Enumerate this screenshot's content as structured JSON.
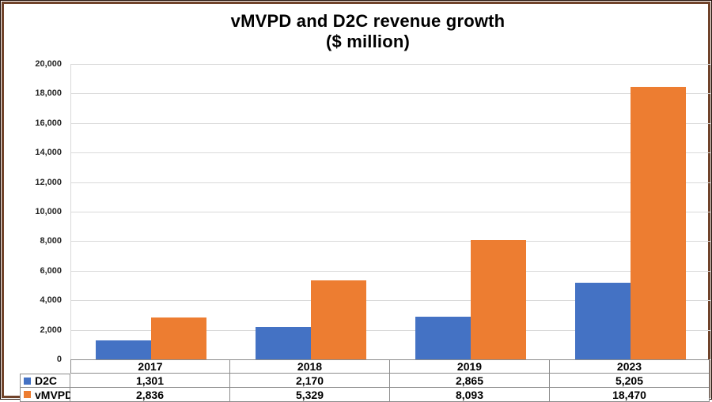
{
  "frame": {
    "border_color": "#70432a"
  },
  "title": {
    "line1": "vMVPD and D2C revenue growth",
    "line2": "($ million)"
  },
  "chart_data": {
    "type": "bar",
    "title": "vMVPD and D2C revenue growth",
    "subtitle": "($ million)",
    "categories": [
      "2017",
      "2018",
      "2019",
      "2023"
    ],
    "series": [
      {
        "name": "D2C",
        "color": "#4472C4",
        "values": [
          1301,
          2170,
          2865,
          5205
        ],
        "value_labels": [
          "1,301",
          "2,170",
          "2,865",
          "5,205"
        ]
      },
      {
        "name": "vMVPD",
        "color": "#ED7D31",
        "values": [
          2836,
          5329,
          8093,
          18470
        ],
        "value_labels": [
          "2,836",
          "5,329",
          "8,093",
          "18,470"
        ]
      }
    ],
    "xlabel": "",
    "ylabel": "",
    "ylim": [
      0,
      20000
    ],
    "ytick_step": 2000,
    "ytick_labels": [
      "20,000",
      "18,000",
      "16,000",
      "14,000",
      "12,000",
      "10,000",
      "8,000",
      "6,000",
      "4,000",
      "2,000",
      "0"
    ],
    "grid": true,
    "gridline_color": "#d9d9d9",
    "legend_position": "data-table-left",
    "data_table": true
  }
}
